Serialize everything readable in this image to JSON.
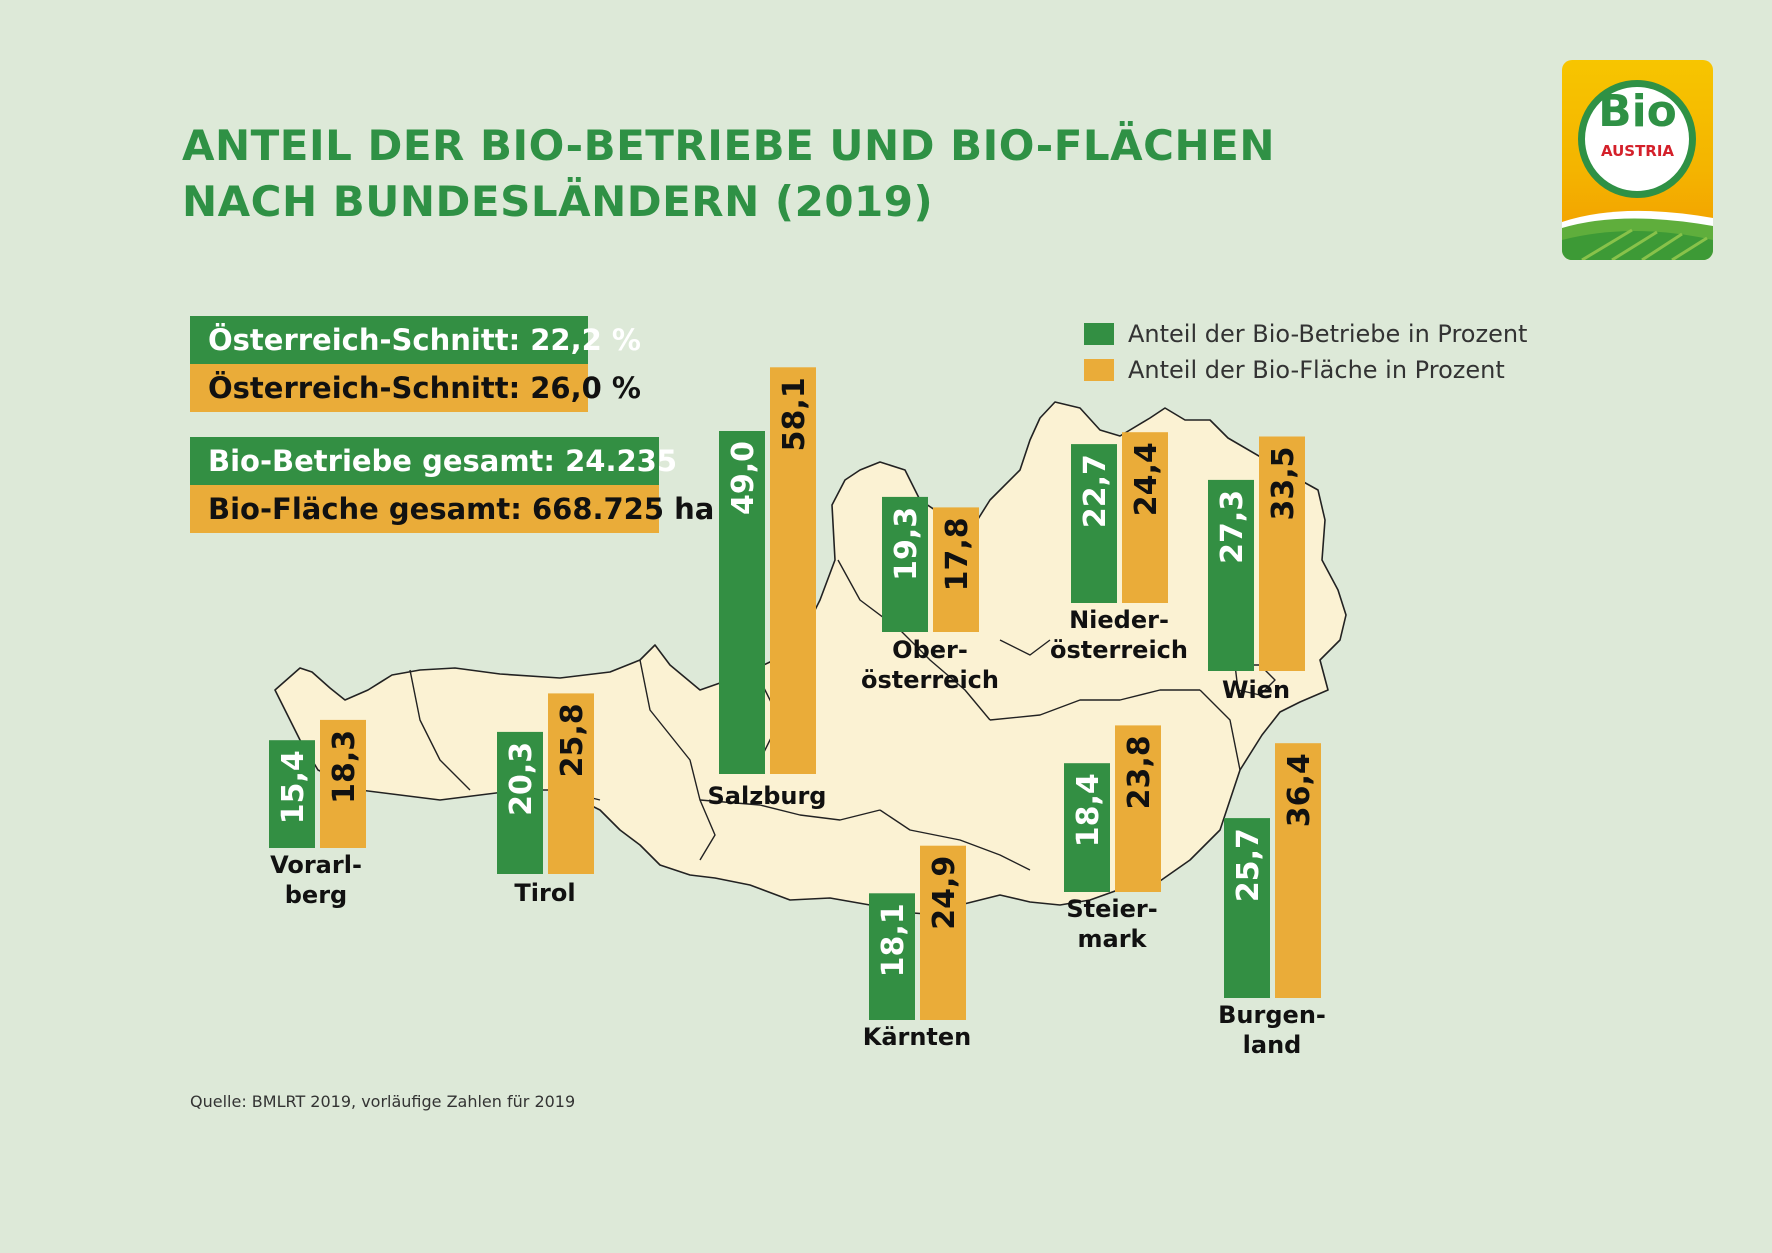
{
  "title_lines": [
    "ANTEIL DER BIO-BETRIEBE UND BIO-FLÄCHEN",
    "NACH BUNDESLÄNDERN (2019)"
  ],
  "summary": {
    "avg_betriebe": "Österreich-Schnitt: 22,2 %",
    "avg_flaeche": "Österreich-Schnitt: 26,0 %",
    "total_betriebe": "Bio-Betriebe gesamt: 24.235",
    "total_flaeche": "Bio-Fläche gesamt: 668.725 ha"
  },
  "legend": {
    "betriebe": "Anteil der Bio-Betriebe in Prozent",
    "flaeche": "Anteil der Bio-Fläche in Prozent"
  },
  "source": "Quelle: BMLRT 2019, vorläufige Zahlen für 2019",
  "logo": {
    "word": "Bio",
    "sub": "AUSTRIA"
  },
  "colors": {
    "betriebe": "#338f43",
    "flaeche": "#eaac39",
    "title": "#2f9145",
    "map_fill": "#fbf2d3",
    "background": "#dde9d8"
  },
  "chart_data": {
    "type": "bar",
    "categories": [
      "Vorarlberg",
      "Tirol",
      "Salzburg",
      "Oberösterreich",
      "Kärnten",
      "Niederösterreich",
      "Wien",
      "Steiermark",
      "Burgenland"
    ],
    "category_labels": [
      [
        "Vorarl-",
        "berg"
      ],
      [
        "Tirol"
      ],
      [
        "Salzburg"
      ],
      [
        "Ober-",
        "österreich"
      ],
      [
        "Kärnten"
      ],
      [
        "Nieder-",
        "österreich"
      ],
      [
        "Wien"
      ],
      [
        "Steier-",
        "mark"
      ],
      [
        "Burgen-",
        "land"
      ]
    ],
    "series": [
      {
        "name": "Anteil der Bio-Betriebe in Prozent",
        "values": [
          15.4,
          20.3,
          49.0,
          19.3,
          18.1,
          22.7,
          27.3,
          18.4,
          25.7
        ]
      },
      {
        "name": "Anteil der Bio-Fläche in Prozent",
        "values": [
          18.3,
          25.8,
          58.1,
          17.8,
          24.9,
          24.4,
          33.5,
          23.8,
          36.4
        ]
      }
    ],
    "value_labels": [
      [
        "15,4",
        "20,3",
        "49,0",
        "19,3",
        "18,1",
        "22,7",
        "27,3",
        "18,4",
        "25,7"
      ],
      [
        "18,3",
        "25,8",
        "58,1",
        "17,8",
        "24,9",
        "24,4",
        "33,5",
        "23,8",
        "36,4"
      ]
    ],
    "unit": "%",
    "background": "map of Austria",
    "legend_position": "top-right"
  }
}
